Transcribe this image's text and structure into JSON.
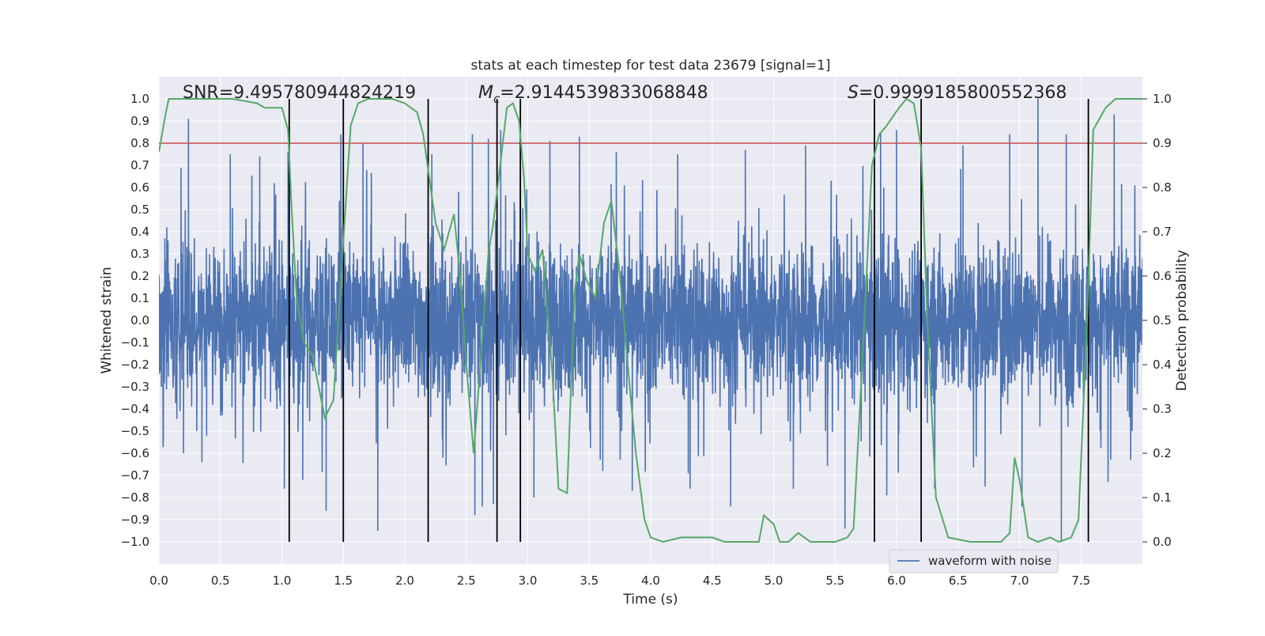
{
  "chart_data": {
    "type": "line",
    "title": "stats at each timestep for test data 23679 [signal=1]",
    "xlabel": "Time (s)",
    "ylabel": "Whitened strain",
    "y2label": "Detection probability",
    "xlim": [
      0.0,
      8.0
    ],
    "ylim": [
      -1.1,
      1.1
    ],
    "y2lim": [
      -0.05,
      1.05
    ],
    "grid": true,
    "xticks": [
      0.0,
      0.5,
      1.0,
      1.5,
      2.0,
      2.5,
      3.0,
      3.5,
      4.0,
      4.5,
      5.0,
      5.5,
      6.0,
      6.5,
      7.0,
      7.5
    ],
    "xtick_labels": [
      "0.0",
      "0.5",
      "1.0",
      "1.5",
      "2.0",
      "2.5",
      "3.0",
      "3.5",
      "4.0",
      "4.5",
      "5.0",
      "5.5",
      "6.0",
      "6.5",
      "7.0",
      "7.5"
    ],
    "yticks": [
      1.0,
      0.9,
      0.8,
      0.7,
      0.6,
      0.5,
      0.4,
      0.3,
      0.2,
      0.1,
      0.0,
      -0.1,
      -0.2,
      -0.3,
      -0.4,
      -0.5,
      -0.6,
      -0.7,
      -0.8,
      -0.9,
      -1.0
    ],
    "ytick_labels": [
      "1.0",
      "0.9",
      "0.8",
      "0.7",
      "0.6",
      "0.5",
      "0.4",
      "0.3",
      "0.2",
      "0.1",
      "0.0",
      "−0.1",
      "−0.2",
      "−0.3",
      "−0.4",
      "−0.5",
      "−0.6",
      "−0.7",
      "−0.8",
      "−0.9",
      "−1.0"
    ],
    "y2ticks": [
      1.0,
      0.9,
      0.8,
      0.7,
      0.6,
      0.5,
      0.4,
      0.3,
      0.2,
      0.1,
      0.0
    ],
    "y2tick_labels": [
      "1.0",
      "0.9",
      "0.8",
      "0.7",
      "0.6",
      "0.5",
      "0.4",
      "0.3",
      "0.2",
      "0.1",
      "0.0"
    ],
    "threshold": {
      "value": 0.9,
      "axis": "y2",
      "color": "#c44e52"
    },
    "vertical_lines": [
      1.06,
      1.5,
      2.19,
      2.75,
      2.94,
      5.82,
      6.2,
      7.56
    ],
    "vertical_line_range": [
      -1.0,
      1.0
    ],
    "annotations": {
      "snr": "SNR=9.495780944824219",
      "mc_symbol": "M",
      "mc_sub": "c",
      "mc_value": "=2.9144539833068848",
      "s_symbol": "S",
      "s_value": "=0.9999185800552368"
    },
    "series": [
      {
        "name": "waveform with noise",
        "axis": "y",
        "color": "#4c72b0",
        "style": "dense-noise",
        "envelope_upper": 0.45,
        "envelope_lower": -0.45,
        "peak_max": [
          [
            0.24,
            0.91
          ],
          [
            0.58,
            0.75
          ],
          [
            0.82,
            0.74
          ],
          [
            1.05,
            0.76
          ],
          [
            1.48,
            0.84
          ],
          [
            1.66,
            0.8
          ],
          [
            2.22,
            0.75
          ],
          [
            2.55,
            0.84
          ],
          [
            2.68,
            0.82
          ],
          [
            2.78,
            0.86
          ],
          [
            3.18,
            0.81
          ],
          [
            3.42,
            0.83
          ],
          [
            3.72,
            0.76
          ],
          [
            4.22,
            0.75
          ],
          [
            4.77,
            0.77
          ],
          [
            5.26,
            0.79
          ],
          [
            5.87,
            0.85
          ],
          [
            6.0,
            0.86
          ],
          [
            6.54,
            0.79
          ],
          [
            6.92,
            0.84
          ],
          [
            7.15,
            1.0
          ],
          [
            7.38,
            0.84
          ],
          [
            7.77,
            0.93
          ]
        ],
        "peak_min": [
          [
            0.2,
            -0.6
          ],
          [
            0.35,
            -0.64
          ],
          [
            1.02,
            -0.76
          ],
          [
            1.17,
            -0.72
          ],
          [
            1.36,
            -0.86
          ],
          [
            1.78,
            -0.95
          ],
          [
            2.31,
            -0.62
          ],
          [
            2.57,
            -0.88
          ],
          [
            2.63,
            -0.84
          ],
          [
            2.72,
            -0.83
          ],
          [
            3.05,
            -0.8
          ],
          [
            3.61,
            -0.68
          ],
          [
            3.85,
            -0.77
          ],
          [
            4.32,
            -0.76
          ],
          [
            4.65,
            -0.84
          ],
          [
            5.16,
            -0.76
          ],
          [
            5.58,
            -0.94
          ],
          [
            5.92,
            -0.79
          ],
          [
            6.31,
            -0.76
          ],
          [
            6.72,
            -0.75
          ],
          [
            7.02,
            -0.84
          ],
          [
            7.34,
            -1.0
          ],
          [
            7.72,
            -0.73
          ]
        ]
      },
      {
        "name": "detection probability",
        "axis": "y2",
        "color": "#55a868",
        "x": [
          0.0,
          0.05,
          0.08,
          0.2,
          0.4,
          0.6,
          0.8,
          0.86,
          0.95,
          1.0,
          1.05,
          1.08,
          1.12,
          1.18,
          1.25,
          1.3,
          1.35,
          1.42,
          1.5,
          1.56,
          1.62,
          1.7,
          1.8,
          1.9,
          2.0,
          2.1,
          2.15,
          2.2,
          2.25,
          2.32,
          2.4,
          2.45,
          2.5,
          2.56,
          2.62,
          2.68,
          2.72,
          2.78,
          2.83,
          2.88,
          2.93,
          2.97,
          3.0,
          3.06,
          3.12,
          3.2,
          3.25,
          3.32,
          3.38,
          3.42,
          3.48,
          3.55,
          3.62,
          3.68,
          3.75,
          3.82,
          3.88,
          3.95,
          4.0,
          4.1,
          4.25,
          4.35,
          4.5,
          4.6,
          4.75,
          4.88,
          4.92,
          5.0,
          5.05,
          5.12,
          5.2,
          5.3,
          5.5,
          5.6,
          5.65,
          5.72,
          5.8,
          5.86,
          5.92,
          6.02,
          6.08,
          6.14,
          6.2,
          6.25,
          6.32,
          6.42,
          6.6,
          6.85,
          6.92,
          6.96,
          7.0,
          7.07,
          7.15,
          7.25,
          7.32,
          7.42,
          7.48,
          7.55,
          7.6,
          7.7,
          7.78,
          7.85,
          8.0
        ],
        "y": [
          0.88,
          0.96,
          1.0,
          1.0,
          1.0,
          1.0,
          0.99,
          0.98,
          0.98,
          0.98,
          0.93,
          0.75,
          0.55,
          0.45,
          0.42,
          0.35,
          0.28,
          0.32,
          0.68,
          0.94,
          0.99,
          1.0,
          1.0,
          1.0,
          0.99,
          0.97,
          0.92,
          0.82,
          0.72,
          0.66,
          0.74,
          0.6,
          0.4,
          0.2,
          0.42,
          0.65,
          0.72,
          0.86,
          0.98,
          0.99,
          0.95,
          0.82,
          0.65,
          0.61,
          0.66,
          0.38,
          0.12,
          0.11,
          0.56,
          0.65,
          0.59,
          0.55,
          0.72,
          0.77,
          0.6,
          0.38,
          0.2,
          0.05,
          0.01,
          0.0,
          0.01,
          0.01,
          0.01,
          0.0,
          0.0,
          0.0,
          0.06,
          0.04,
          0.0,
          0.0,
          0.02,
          0.0,
          0.0,
          0.01,
          0.03,
          0.4,
          0.85,
          0.92,
          0.94,
          0.98,
          1.0,
          0.99,
          0.89,
          0.5,
          0.1,
          0.01,
          0.0,
          0.0,
          0.02,
          0.19,
          0.14,
          0.01,
          0.0,
          0.01,
          0.0,
          0.01,
          0.05,
          0.5,
          0.93,
          0.98,
          1.0,
          1.0,
          1.0
        ]
      }
    ],
    "legend": {
      "entries": [
        "waveform with noise"
      ],
      "position": "lower-right"
    }
  }
}
